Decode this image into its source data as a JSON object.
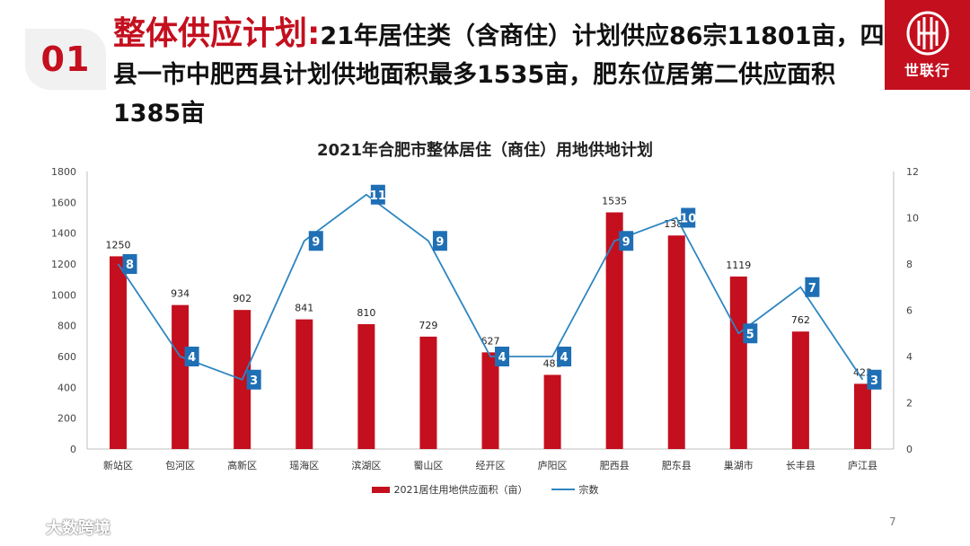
{
  "slide": {
    "number": "01",
    "headline_lead": "整体供应计划:",
    "headline_body": "21年居住类（含商住）计划供应86宗11801亩，四县一市中肥西县计划供地面积最多1535亩，肥东位居第二供应面积1385亩",
    "brand_name": "世联行",
    "page_number": "7",
    "source_watermark": "大数跨境"
  },
  "colors": {
    "bar": "#c40f1e",
    "line": "#2e86c1",
    "label_box": "#1f6fb5",
    "accent": "#c40f1e"
  },
  "chart_data": {
    "type": "bar",
    "title": "2021年合肥市整体居住（商住）用地供地计划",
    "categories": [
      "新站区",
      "包河区",
      "高新区",
      "瑶海区",
      "滨湖区",
      "蜀山区",
      "经开区",
      "庐阳区",
      "肥西县",
      "肥东县",
      "巢湖市",
      "长丰县",
      "庐江县"
    ],
    "series": [
      {
        "name": "2021居住用地供应面积（亩）",
        "type": "bar",
        "axis": "left",
        "values": [
          1250,
          934,
          902,
          841,
          810,
          729,
          627,
          481,
          1535,
          1385,
          1119,
          762,
          423
        ]
      },
      {
        "name": "宗数",
        "type": "line",
        "axis": "right",
        "values": [
          8,
          4,
          3,
          9,
          11,
          9,
          4,
          4,
          9,
          10,
          5,
          7,
          3
        ]
      }
    ],
    "left_axis": {
      "min": 0,
      "max": 1800,
      "ticks": [
        0,
        200,
        400,
        600,
        800,
        1000,
        1200,
        1400,
        1600,
        1800
      ]
    },
    "right_axis": {
      "min": 0,
      "max": 12,
      "ticks": [
        0,
        2,
        4,
        6,
        8,
        10,
        12
      ]
    },
    "grid": false,
    "legend": "bottom"
  }
}
